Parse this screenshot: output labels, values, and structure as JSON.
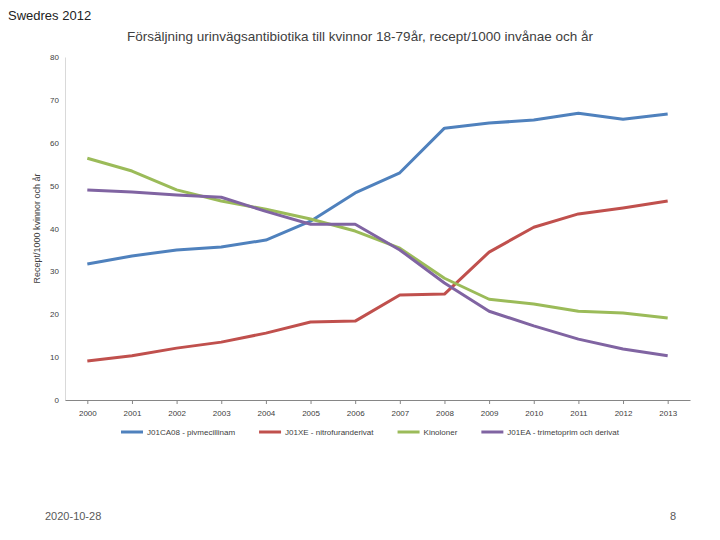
{
  "slide": {
    "header": "Swedres 2012",
    "date": "2020-10-28",
    "page_number": "8"
  },
  "chart_data": {
    "type": "line",
    "title": "Försäljning urinvägsantibiotika till kvinnor 18-79år, recept/1000 invånae och år",
    "y_label": "Recept/1000 kvinnor och år",
    "categories": [
      "2000",
      "2001",
      "2002",
      "2003",
      "2004",
      "2005",
      "2006",
      "2007",
      "2008",
      "2009",
      "2010",
      "2011",
      "2012",
      "2013"
    ],
    "series": [
      {
        "name": "J01CA08 - pivmecillinam",
        "color": "#4f81bd",
        "values": [
          31.7,
          33.6,
          35.0,
          35.7,
          37.3,
          41.7,
          48.3,
          53.0,
          63.4,
          64.6,
          65.3,
          66.9,
          65.5,
          66.7
        ]
      },
      {
        "name": "J01XE - nitrofuranderivat",
        "color": "#c0504d",
        "values": [
          9.1,
          10.3,
          12.1,
          13.5,
          15.6,
          18.2,
          18.4,
          24.5,
          24.7,
          34.5,
          40.3,
          43.4,
          44.8,
          46.4
        ]
      },
      {
        "name": "Kinoloner",
        "color": "#9bbb59",
        "values": [
          56.4,
          53.4,
          49.0,
          46.4,
          44.5,
          42.2,
          39.4,
          35.4,
          28.4,
          23.5,
          22.4,
          20.7,
          20.3,
          19.1
        ]
      },
      {
        "name": "J01EA - trimetoprim och derivat",
        "color": "#8064a2",
        "values": [
          49.0,
          48.5,
          47.8,
          47.3,
          44.0,
          41.0,
          41.0,
          35.0,
          27.3,
          20.7,
          17.3,
          14.2,
          11.9,
          10.3
        ]
      }
    ],
    "ylim": [
      0,
      80
    ],
    "yticks": [
      0,
      10,
      20,
      30,
      40,
      50,
      60,
      70,
      80
    ],
    "grid": false,
    "legend": "bottom"
  }
}
